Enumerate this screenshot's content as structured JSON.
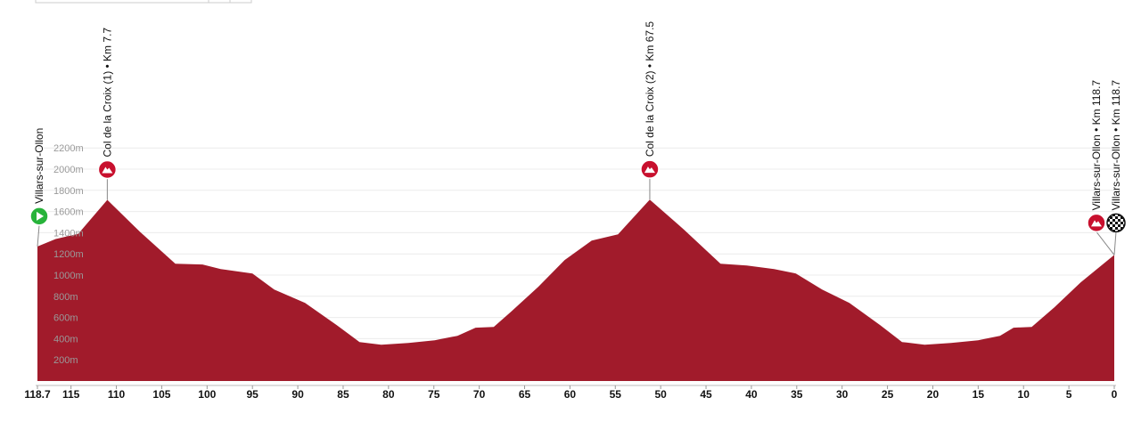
{
  "chart_data": {
    "type": "area",
    "color": "#a11b2b",
    "grid": true,
    "x_reversed": true,
    "x": [
      118.7,
      116.7,
      114.2,
      111,
      107.4,
      103.5,
      100.5,
      98.5,
      95,
      92.6,
      89.2,
      85.7,
      83.2,
      80.8,
      77.8,
      74.9,
      72.4,
      70.4,
      68.4,
      66.5,
      63.5,
      60.6,
      57.6,
      54.7,
      51.2,
      47.4,
      43.4,
      40.5,
      37.5,
      35.1,
      32.2,
      29.2,
      25.8,
      23.4,
      20.9,
      18,
      15,
      12.6,
      11.1,
      9.1,
      6.6,
      3.7,
      0
    ],
    "values": [
      1270,
      1340,
      1390,
      1710,
      1408,
      1107,
      1100,
      1057,
      1015,
      864,
      738,
      528,
      368,
      343,
      360,
      385,
      427,
      503,
      511,
      654,
      889,
      1141,
      1326,
      1385,
      1713,
      1427,
      1107,
      1091,
      1057,
      1015,
      864,
      738,
      528,
      368,
      343,
      360,
      385,
      427,
      503,
      511,
      696,
      931,
      1190
    ],
    "xlim": [
      118.7,
      0
    ],
    "ylim": [
      0,
      2300
    ],
    "xticks": [
      118.7,
      115,
      110,
      105,
      100,
      95,
      90,
      85,
      80,
      75,
      70,
      65,
      60,
      55,
      50,
      45,
      40,
      35,
      30,
      25,
      20,
      15,
      10,
      5,
      0
    ],
    "yticks": [
      {
        "value": 200,
        "label": "200m"
      },
      {
        "value": 400,
        "label": "400m"
      },
      {
        "value": 600,
        "label": "600m"
      },
      {
        "value": 800,
        "label": "800m"
      },
      {
        "value": 1000,
        "label": "1000m"
      },
      {
        "value": 1200,
        "label": "1200m"
      },
      {
        "value": 1400,
        "label": "1400m"
      },
      {
        "value": 1600,
        "label": "1600m"
      },
      {
        "value": 1800,
        "label": "1800m"
      },
      {
        "value": 2000,
        "label": "2000m"
      },
      {
        "value": 2200,
        "label": "2200m"
      }
    ],
    "markers": [
      {
        "label": "Villars-sur-Ollon",
        "km": 118.7,
        "kind": "start"
      },
      {
        "label": "Col de la Croix (1) • Km 7.7",
        "km": 111,
        "kind": "climb"
      },
      {
        "label": "Col de la Croix (2) • Km 67.5",
        "km": 51.2,
        "kind": "climb"
      },
      {
        "label": "Villars-sur-Ollon • Km 118.7",
        "km": 0,
        "kind": "climb"
      },
      {
        "label": "Villars-sur-Ollon • Km 118.7",
        "km": 0,
        "kind": "finish"
      }
    ]
  }
}
